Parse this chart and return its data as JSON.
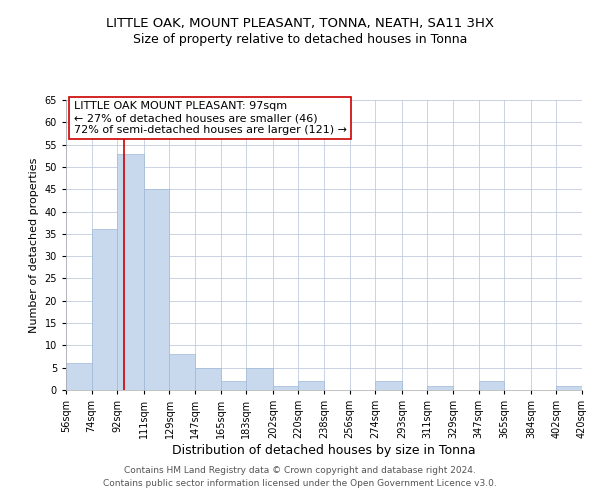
{
  "title": "LITTLE OAK, MOUNT PLEASANT, TONNA, NEATH, SA11 3HX",
  "subtitle": "Size of property relative to detached houses in Tonna",
  "xlabel": "Distribution of detached houses by size in Tonna",
  "ylabel": "Number of detached properties",
  "bin_edges": [
    56,
    74,
    92,
    111,
    129,
    147,
    165,
    183,
    202,
    220,
    238,
    256,
    274,
    293,
    311,
    329,
    347,
    365,
    384,
    402,
    420
  ],
  "bar_heights": [
    6,
    36,
    53,
    45,
    8,
    5,
    2,
    5,
    1,
    2,
    0,
    0,
    2,
    0,
    1,
    0,
    2,
    0,
    0,
    1
  ],
  "bar_color": "#c9d9ed",
  "bar_edgecolor": "#a0b8d8",
  "property_size": 97,
  "vline_color": "#cc0000",
  "annotation_text": "LITTLE OAK MOUNT PLEASANT: 97sqm\n← 27% of detached houses are smaller (46)\n72% of semi-detached houses are larger (121) →",
  "annotation_box_edgecolor": "#cc0000",
  "annotation_box_facecolor": "#ffffff",
  "ylim": [
    0,
    65
  ],
  "yticks": [
    0,
    5,
    10,
    15,
    20,
    25,
    30,
    35,
    40,
    45,
    50,
    55,
    60,
    65
  ],
  "background_color": "#ffffff",
  "grid_color": "#c0ccdd",
  "footer_text": "Contains HM Land Registry data © Crown copyright and database right 2024.\nContains public sector information licensed under the Open Government Licence v3.0.",
  "title_fontsize": 9.5,
  "subtitle_fontsize": 9,
  "xlabel_fontsize": 9,
  "ylabel_fontsize": 8,
  "tick_label_fontsize": 7,
  "annotation_fontsize": 8,
  "footer_fontsize": 6.5
}
